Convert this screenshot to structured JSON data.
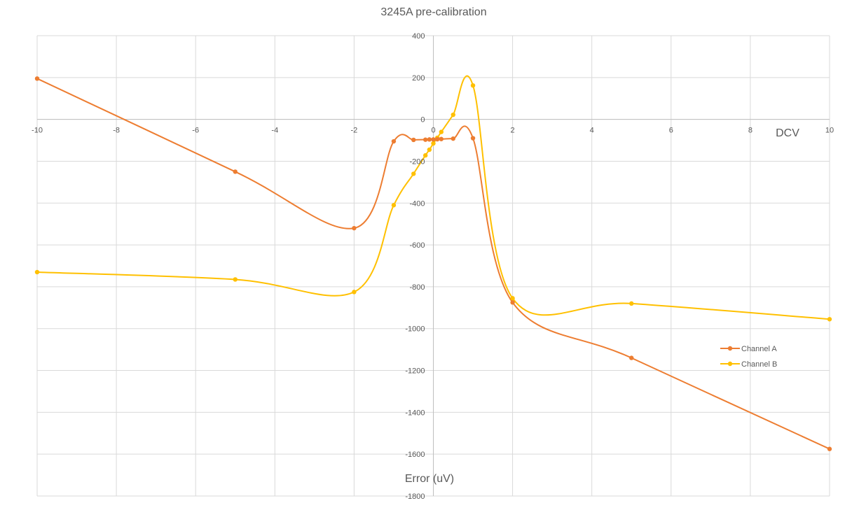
{
  "chart_data": {
    "type": "scatter",
    "title": "3245A pre-calibration",
    "xlabel": "DCV",
    "ylabel": "Error (uV)",
    "xlim": [
      -10,
      10
    ],
    "ylim": [
      -1800,
      400
    ],
    "x_ticks": [
      -10,
      -8,
      -6,
      -4,
      -2,
      0,
      2,
      4,
      6,
      8,
      10
    ],
    "y_ticks": [
      400,
      200,
      0,
      -200,
      -400,
      -600,
      -800,
      -1000,
      -1200,
      -1400,
      -1600,
      -1800
    ],
    "grid": true,
    "smooth": true,
    "legend": "right",
    "series": [
      {
        "name": "Channel A",
        "color": "#ED7D31",
        "points": [
          [
            -10,
            195
          ],
          [
            -5,
            -250
          ],
          [
            -2,
            -520
          ],
          [
            -1,
            -105
          ],
          [
            -0.5,
            -98
          ],
          [
            -0.2,
            -97
          ],
          [
            -0.1,
            -96
          ],
          [
            0,
            -96
          ],
          [
            0.1,
            -95
          ],
          [
            0.2,
            -94
          ],
          [
            0.5,
            -92
          ],
          [
            1,
            -90
          ],
          [
            2,
            -875
          ],
          [
            5,
            -1140
          ],
          [
            10,
            -1575
          ]
        ]
      },
      {
        "name": "Channel B",
        "color": "#FFC000",
        "points": [
          [
            -10,
            -730
          ],
          [
            -5,
            -765
          ],
          [
            -2,
            -825
          ],
          [
            -1,
            -410
          ],
          [
            -0.5,
            -260
          ],
          [
            -0.2,
            -172
          ],
          [
            -0.1,
            -145
          ],
          [
            0,
            -115
          ],
          [
            0.1,
            -88
          ],
          [
            0.2,
            -60
          ],
          [
            0.5,
            22
          ],
          [
            1,
            162
          ],
          [
            2,
            -855
          ],
          [
            5,
            -880
          ],
          [
            10,
            -955
          ]
        ]
      }
    ]
  }
}
